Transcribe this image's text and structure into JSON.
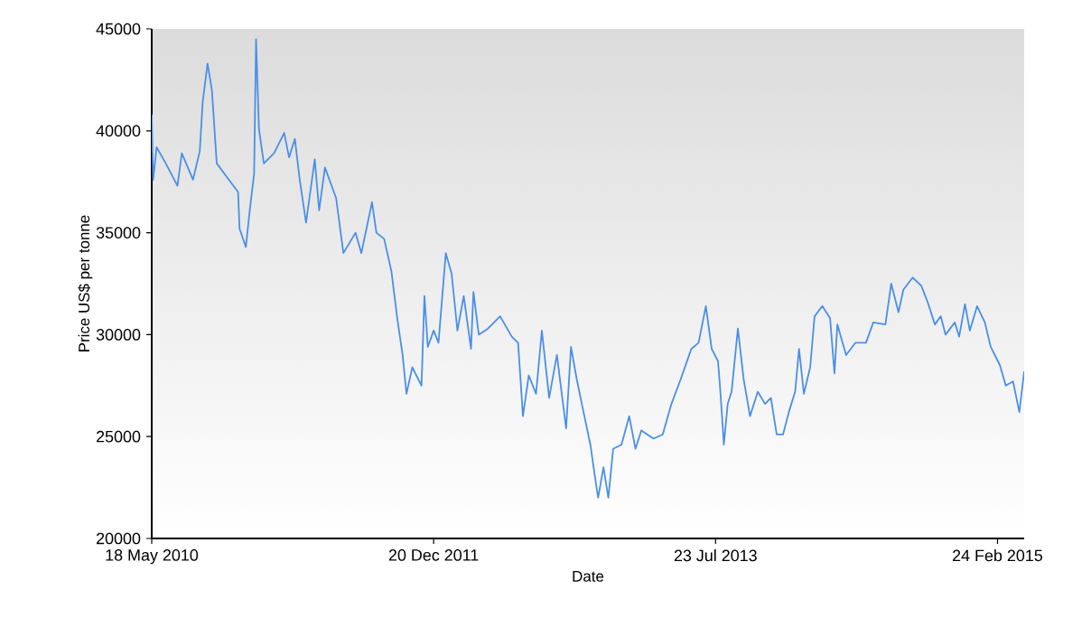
{
  "chart_data": {
    "type": "line",
    "xlabel": "Date",
    "ylabel": "Price US$ per tonne",
    "xlim": [
      "2010-05-18",
      "2015-04-20"
    ],
    "ylim": [
      20000,
      45000
    ],
    "xticks": [
      {
        "value": "2010-05-18",
        "label": "18 May 2010"
      },
      {
        "value": "2011-12-20",
        "label": "20 Dec 2011"
      },
      {
        "value": "2013-07-23",
        "label": "23 Jul 2013"
      },
      {
        "value": "2015-02-24",
        "label": "24 Feb 2015"
      }
    ],
    "yticks": [
      20000,
      25000,
      30000,
      35000,
      40000,
      45000
    ],
    "grid": false,
    "marker": "none",
    "line_style": "solid",
    "series": [
      {
        "color": "#4a8fe7",
        "x": [
          "2010-05-18",
          "2010-05-21",
          "2010-05-28",
          "2010-06-16",
          "2010-07-10",
          "2010-07-19",
          "2010-08-11",
          "2010-08-25",
          "2010-08-31",
          "2010-09-10",
          "2010-09-19",
          "2010-09-29",
          "2010-10-24",
          "2010-11-12",
          "2010-11-15",
          "2010-11-28",
          "2010-12-06",
          "2010-12-15",
          "2010-12-19",
          "2010-12-25",
          "2011-01-04",
          "2011-01-25",
          "2011-02-15",
          "2011-02-25",
          "2011-03-09",
          "2011-03-19",
          "2011-04-01",
          "2011-04-19",
          "2011-04-28",
          "2011-05-10",
          "2011-06-02",
          "2011-06-17",
          "2011-07-12",
          "2011-07-24",
          "2011-08-15",
          "2011-08-24",
          "2011-09-09",
          "2011-09-24",
          "2011-10-06",
          "2011-10-17",
          "2011-10-25",
          "2011-11-06",
          "2011-11-25",
          "2011-12-01",
          "2011-12-08",
          "2011-12-20",
          "2011-12-30",
          "2012-01-14",
          "2012-01-26",
          "2012-02-07",
          "2012-02-20",
          "2012-03-06",
          "2012-03-11",
          "2012-03-22",
          "2012-04-10",
          "2012-05-05",
          "2012-05-29",
          "2012-06-11",
          "2012-06-21",
          "2012-07-03",
          "2012-07-18",
          "2012-07-30",
          "2012-08-14",
          "2012-08-30",
          "2012-09-18",
          "2012-09-28",
          "2012-10-10",
          "2012-10-23",
          "2012-11-07",
          "2012-11-16",
          "2012-11-23",
          "2012-12-04",
          "2012-12-14",
          "2012-12-24",
          "2013-01-10",
          "2013-01-26",
          "2013-02-08",
          "2013-02-20",
          "2013-03-17",
          "2013-04-05",
          "2013-04-23",
          "2013-05-12",
          "2013-06-03",
          "2013-06-18",
          "2013-07-03",
          "2013-07-15",
          "2013-07-28",
          "2013-08-01",
          "2013-08-07",
          "2013-08-09",
          "2013-08-17",
          "2013-08-25",
          "2013-09-07",
          "2013-09-19",
          "2013-10-02",
          "2013-10-18",
          "2013-11-02",
          "2013-11-14",
          "2013-11-26",
          "2013-12-09",
          "2013-12-21",
          "2014-01-03",
          "2014-01-11",
          "2014-01-21",
          "2014-02-03",
          "2014-02-12",
          "2014-02-28",
          "2014-03-16",
          "2014-03-25",
          "2014-03-31",
          "2014-04-18",
          "2014-05-07",
          "2014-05-29",
          "2014-06-13",
          "2014-07-08",
          "2014-07-20",
          "2014-08-04",
          "2014-08-14",
          "2014-09-02",
          "2014-09-20",
          "2014-10-03",
          "2014-10-18",
          "2014-10-30",
          "2014-11-09",
          "2014-11-28",
          "2014-12-07",
          "2014-12-19",
          "2014-12-29",
          "2015-01-13",
          "2015-01-29",
          "2015-02-10",
          "2015-03-01",
          "2015-03-13",
          "2015-03-28",
          "2015-04-10",
          "2015-04-20"
        ],
        "values": [
          40800,
          37600,
          39200,
          38400,
          37300,
          38900,
          37600,
          39000,
          41400,
          43300,
          42000,
          38400,
          37600,
          37000,
          35200,
          34300,
          36100,
          37900,
          44500,
          40100,
          38400,
          38900,
          39900,
          38700,
          39600,
          37600,
          35500,
          38600,
          36100,
          38200,
          36700,
          34000,
          35000,
          34000,
          36500,
          35000,
          34700,
          33100,
          30800,
          29000,
          27100,
          28400,
          27500,
          31900,
          29400,
          30200,
          29600,
          34000,
          33000,
          30200,
          31900,
          29300,
          32100,
          30000,
          30300,
          30900,
          29900,
          29600,
          26000,
          28000,
          27100,
          30200,
          26900,
          29000,
          25400,
          29400,
          27800,
          26300,
          24600,
          23100,
          22000,
          23500,
          22000,
          24400,
          24600,
          26000,
          24400,
          25300,
          24900,
          25100,
          26600,
          27800,
          29300,
          29600,
          31400,
          29300,
          28700,
          27500,
          25400,
          24600,
          26600,
          27200,
          30300,
          27800,
          26000,
          27200,
          26600,
          26900,
          25100,
          25100,
          26200,
          27200,
          29300,
          27100,
          28400,
          30900,
          31400,
          30800,
          28100,
          30500,
          29000,
          29600,
          29600,
          30600,
          30500,
          32500,
          31100,
          32200,
          32800,
          32400,
          31600,
          30500,
          30900,
          30000,
          30600,
          29900,
          31500,
          30200,
          31400,
          30600,
          29400,
          28500,
          27500,
          27700,
          26200,
          28200
        ]
      }
    ]
  }
}
